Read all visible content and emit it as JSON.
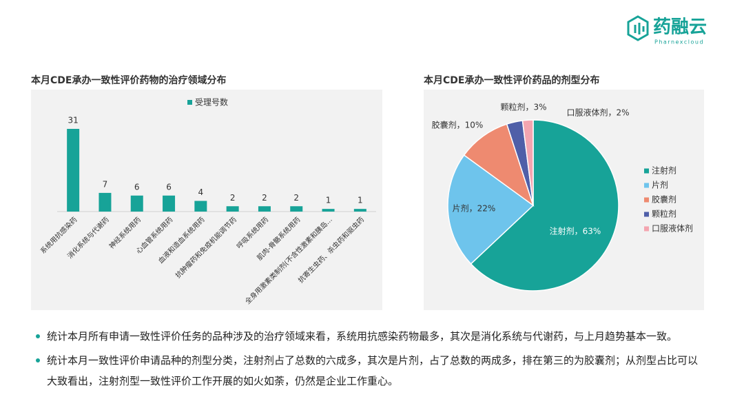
{
  "header": {
    "brand": "药融云",
    "brand_sub": "Pharnexcloud"
  },
  "chart_data": [
    {
      "type": "bar",
      "title": "本月CDE承办一致性评价药物的治疗领域分布",
      "categories": [
        "系统用抗感染药",
        "消化系统与代谢药",
        "神经系统用药",
        "心血管系统用药",
        "血液和造血系统用药",
        "抗肿瘤药和免疫机能调节药",
        "呼吸系统用药",
        "肌肉-骨骼系统用药",
        "全身用激素类制剂(不含性激素和胰岛...",
        "抗寄生虫药、杀虫药和驱虫药"
      ],
      "series": [
        {
          "name": "受理号数",
          "color": "#17a398",
          "values": [
            31,
            7,
            6,
            6,
            4,
            2,
            2,
            2,
            1,
            1
          ]
        }
      ],
      "legend": "top"
    },
    {
      "type": "pie",
      "title": "本月CDE承办一致性评价药品的剂型分布",
      "categories": [
        "注射剂",
        "片剂",
        "胶囊剂",
        "颗粒剂",
        "口服液体剂"
      ],
      "values": [
        63,
        22,
        10,
        3,
        2
      ],
      "value_labels": [
        "注射剂，63%",
        "片剂，22%",
        "胶囊剂，10%",
        "颗粒剂，3%",
        "口服液体剂，2%"
      ],
      "colors": [
        "#17a398",
        "#6ec4ec",
        "#ee8a70",
        "#4f5fa8",
        "#f4a5b0"
      ],
      "legend": "right"
    }
  ],
  "notes": [
    "统计本月所有申请一致性评价任务的品种涉及的治疗领域来看，系统用抗感染药物最多，其次是消化系统与代谢药，与上月趋势基本一致。",
    "统计本月一致性评价申请品种的剂型分类，注射剂占了总数的六成多，其次是片剂，占了总数的两成多，排在第三的为胶囊剂；从剂型占比可以大致看出，注射剂型一致性评价工作开展的如火如荼，仍然是企业工作重心。"
  ]
}
